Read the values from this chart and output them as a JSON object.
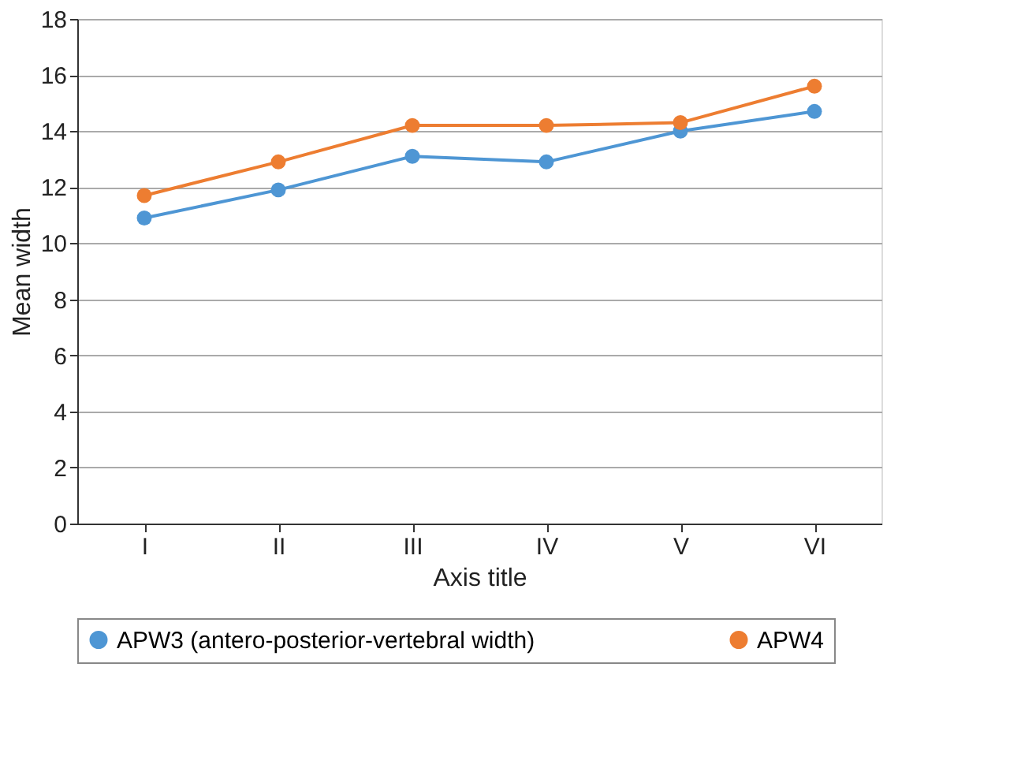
{
  "chart_data": {
    "type": "line",
    "xlabel": "Axis title",
    "ylabel": "Mean width",
    "categories": [
      "I",
      "II",
      "III",
      "IV",
      "V",
      "VI"
    ],
    "series": [
      {
        "name": "APW3 (antero-posterior-vertebral width)",
        "color": "#4e96d4",
        "values": [
          10.9,
          11.9,
          13.1,
          12.9,
          14.0,
          14.7
        ]
      },
      {
        "name": "APW4",
        "color": "#ed7d31",
        "values": [
          11.7,
          12.9,
          14.2,
          14.2,
          14.3,
          15.6
        ]
      }
    ],
    "ylim": [
      0,
      18
    ],
    "yticks": [
      0,
      2,
      4,
      6,
      8,
      10,
      12,
      14,
      16,
      18
    ],
    "grid": "y",
    "legend": "bottom",
    "marker": "circle",
    "line_style": "solid"
  }
}
